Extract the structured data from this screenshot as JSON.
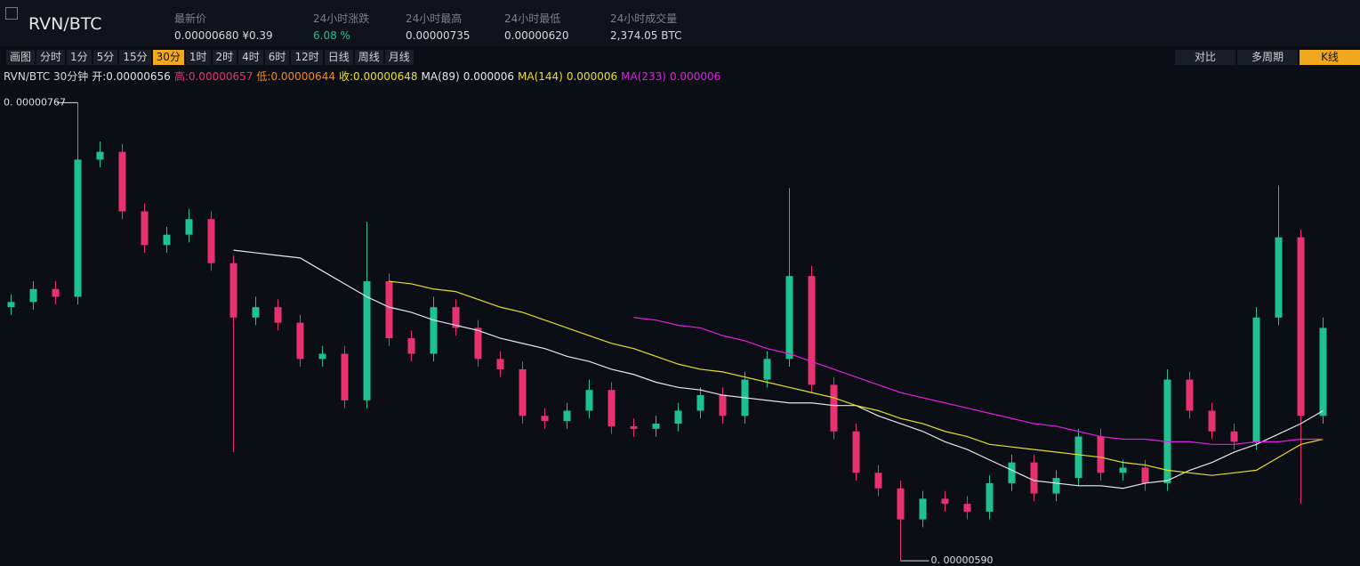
{
  "header": {
    "title": "RVN/BTC",
    "stats": [
      {
        "label": "最新价",
        "value": "0.00000680 ¥0.39"
      },
      {
        "label": "24小时涨跌",
        "value": "6.08 %",
        "color": "#1fc28f"
      },
      {
        "label": "24小时最高",
        "value": "0.00000735"
      },
      {
        "label": "24小时最低",
        "value": "0.00000620"
      },
      {
        "label": "24小时成交量",
        "value": "2,374.05 BTC"
      }
    ]
  },
  "toolbar": {
    "intervals": [
      {
        "label": "画图"
      },
      {
        "label": "分时"
      },
      {
        "label": "1分"
      },
      {
        "label": "5分"
      },
      {
        "label": "15分"
      },
      {
        "label": "30分",
        "active": true
      },
      {
        "label": "1时"
      },
      {
        "label": "2时"
      },
      {
        "label": "4时"
      },
      {
        "label": "6时"
      },
      {
        "label": "12时"
      },
      {
        "label": "日线"
      },
      {
        "label": "周线"
      },
      {
        "label": "月线"
      }
    ],
    "views": [
      {
        "label": "对比"
      },
      {
        "label": "多周期"
      },
      {
        "label": "K线",
        "active": true
      }
    ]
  },
  "legend": {
    "symbol": "RVN/BTC 30分钟",
    "items": [
      {
        "label": "开:",
        "value": "0.00000656",
        "color": "#e0e0e0"
      },
      {
        "label": "高:",
        "value": "0.00000657",
        "color": "#e8326f"
      },
      {
        "label": "低:",
        "value": "0.00000644",
        "color": "#f08a1c"
      },
      {
        "label": "收:",
        "value": "0.00000648",
        "color": "#e8e020"
      }
    ]
  },
  "chart_data": {
    "type": "candlestick",
    "ylim": [
      5.88e-06,
      7.74e-06
    ],
    "up_color": "#1fc28f",
    "down_color": "#e8326f",
    "open": [
      6.88e-06,
      6.9e-06,
      6.95e-06,
      6.92e-06,
      7.45e-06,
      7.48e-06,
      7.25e-06,
      7.12e-06,
      7.16e-06,
      7.22e-06,
      7.05e-06,
      6.84e-06,
      6.88e-06,
      6.82e-06,
      6.68e-06,
      6.7e-06,
      6.52e-06,
      6.98e-06,
      6.76e-06,
      6.7e-06,
      6.88e-06,
      6.8e-06,
      6.68e-06,
      6.64e-06,
      6.46e-06,
      6.44e-06,
      6.48e-06,
      6.56e-06,
      6.42e-06,
      6.41e-06,
      6.43e-06,
      6.48e-06,
      6.54e-06,
      6.46e-06,
      6.6e-06,
      6.68e-06,
      7e-06,
      6.58e-06,
      6.4e-06,
      6.24e-06,
      6.18e-06,
      6.06e-06,
      6.14e-06,
      6.12e-06,
      6.09e-06,
      6.2e-06,
      6.28e-06,
      6.16e-06,
      6.22e-06,
      6.38e-06,
      6.24e-06,
      6.26e-06,
      6.2e-06,
      6.6e-06,
      6.48e-06,
      6.4e-06,
      6.36e-06,
      6.84e-06,
      7.15e-06,
      6.46e-06
    ],
    "high": [
      6.93e-06,
      6.98e-06,
      6.98e-06,
      7.67e-06,
      7.52e-06,
      7.51e-06,
      7.28e-06,
      7.19e-06,
      7.26e-06,
      7.25e-06,
      7.08e-06,
      6.92e-06,
      6.91e-06,
      6.85e-06,
      6.73e-06,
      6.73e-06,
      7.21e-06,
      7.01e-06,
      6.79e-06,
      6.92e-06,
      6.91e-06,
      6.83e-06,
      6.71e-06,
      6.67e-06,
      6.49e-06,
      6.51e-06,
      6.6e-06,
      6.59e-06,
      6.45e-06,
      6.46e-06,
      6.51e-06,
      6.57e-06,
      6.57e-06,
      6.63e-06,
      6.71e-06,
      7.34e-06,
      7.04e-06,
      6.61e-06,
      6.43e-06,
      6.27e-06,
      6.21e-06,
      6.17e-06,
      6.17e-06,
      6.15e-06,
      6.23e-06,
      6.31e-06,
      6.31e-06,
      6.25e-06,
      6.41e-06,
      6.41e-06,
      6.29e-06,
      6.29e-06,
      6.64e-06,
      6.63e-06,
      6.51e-06,
      6.43e-06,
      6.88e-06,
      7.35e-06,
      7.18e-06,
      6.84e-06
    ],
    "low": [
      6.85e-06,
      6.87e-06,
      6.89e-06,
      6.89e-06,
      7.42e-06,
      7.22e-06,
      7.09e-06,
      7.09e-06,
      7.13e-06,
      7.02e-06,
      6.32e-06,
      6.81e-06,
      6.79e-06,
      6.65e-06,
      6.65e-06,
      6.49e-06,
      6.49e-06,
      6.73e-06,
      6.67e-06,
      6.67e-06,
      6.77e-06,
      6.65e-06,
      6.61e-06,
      6.43e-06,
      6.41e-06,
      6.41e-06,
      6.45e-06,
      6.39e-06,
      6.38e-06,
      6.38e-06,
      6.4e-06,
      6.45e-06,
      6.43e-06,
      6.43e-06,
      6.57e-06,
      6.65e-06,
      6.55e-06,
      6.37e-06,
      6.21e-06,
      6.15e-06,
      5.9e-06,
      6.03e-06,
      6.09e-06,
      6.06e-06,
      6.06e-06,
      6.17e-06,
      6.13e-06,
      6.13e-06,
      6.19e-06,
      6.21e-06,
      6.21e-06,
      6.17e-06,
      6.17e-06,
      6.45e-06,
      6.37e-06,
      6.33e-06,
      6.33e-06,
      6.81e-06,
      6.12e-06,
      6.43e-06
    ],
    "close": [
      6.9e-06,
      6.95e-06,
      6.92e-06,
      7.45e-06,
      7.48e-06,
      7.25e-06,
      7.12e-06,
      7.16e-06,
      7.22e-06,
      7.05e-06,
      6.84e-06,
      6.88e-06,
      6.82e-06,
      6.68e-06,
      6.7e-06,
      6.52e-06,
      6.98e-06,
      6.76e-06,
      6.7e-06,
      6.88e-06,
      6.8e-06,
      6.68e-06,
      6.64e-06,
      6.46e-06,
      6.44e-06,
      6.48e-06,
      6.56e-06,
      6.42e-06,
      6.41e-06,
      6.43e-06,
      6.48e-06,
      6.54e-06,
      6.46e-06,
      6.6e-06,
      6.68e-06,
      7e-06,
      6.58e-06,
      6.4e-06,
      6.24e-06,
      6.18e-06,
      6.06e-06,
      6.14e-06,
      6.12e-06,
      6.09e-06,
      6.2e-06,
      6.28e-06,
      6.16e-06,
      6.22e-06,
      6.38e-06,
      6.24e-06,
      6.26e-06,
      6.2e-06,
      6.6e-06,
      6.48e-06,
      6.4e-06,
      6.36e-06,
      6.84e-06,
      7.15e-06,
      6.46e-06,
      6.8e-06
    ],
    "series": [
      {
        "name": "MA(89)",
        "value_label": "0.000006",
        "color": "#e8e8e8",
        "values": [
          null,
          null,
          null,
          null,
          null,
          null,
          null,
          null,
          null,
          null,
          7.1e-06,
          7.09e-06,
          7.08e-06,
          7.07e-06,
          7.02e-06,
          6.97e-06,
          6.92e-06,
          6.88e-06,
          6.86e-06,
          6.83e-06,
          6.81e-06,
          6.79e-06,
          6.76e-06,
          6.74e-06,
          6.72e-06,
          6.69e-06,
          6.67e-06,
          6.64e-06,
          6.62e-06,
          6.59e-06,
          6.57e-06,
          6.56e-06,
          6.54e-06,
          6.53e-06,
          6.52e-06,
          6.51e-06,
          6.51e-06,
          6.5e-06,
          6.5e-06,
          6.46e-06,
          6.43e-06,
          6.4e-06,
          6.36e-06,
          6.33e-06,
          6.29e-06,
          6.25e-06,
          6.21e-06,
          6.2e-06,
          6.19e-06,
          6.19e-06,
          6.18e-06,
          6.2e-06,
          6.21e-06,
          6.25e-06,
          6.28e-06,
          6.32e-06,
          6.35e-06,
          6.39e-06,
          6.43e-06,
          6.48e-06
        ]
      },
      {
        "name": "MA(144)",
        "value_label": "0.000006",
        "color": "#e8e020",
        "values": [
          null,
          null,
          null,
          null,
          null,
          null,
          null,
          null,
          null,
          null,
          null,
          null,
          null,
          null,
          null,
          null,
          null,
          6.98e-06,
          6.97e-06,
          6.95e-06,
          6.94e-06,
          6.91e-06,
          6.88e-06,
          6.86e-06,
          6.83e-06,
          6.8e-06,
          6.77e-06,
          6.74e-06,
          6.72e-06,
          6.69e-06,
          6.66e-06,
          6.64e-06,
          6.63e-06,
          6.61e-06,
          6.59e-06,
          6.57e-06,
          6.55e-06,
          6.53e-06,
          6.5e-06,
          6.48e-06,
          6.45e-06,
          6.43e-06,
          6.4e-06,
          6.38e-06,
          6.35e-06,
          6.34e-06,
          6.33e-06,
          6.32e-06,
          6.31e-06,
          6.3e-06,
          6.28e-06,
          6.27e-06,
          6.25e-06,
          6.24e-06,
          6.23e-06,
          6.24e-06,
          6.25e-06,
          6.3e-06,
          6.35e-06,
          6.37e-06
        ]
      },
      {
        "name": "MA(233)",
        "value_label": "0.000006",
        "color": "#e020e0",
        "values": [
          null,
          null,
          null,
          null,
          null,
          null,
          null,
          null,
          null,
          null,
          null,
          null,
          null,
          null,
          null,
          null,
          null,
          null,
          null,
          null,
          null,
          null,
          null,
          null,
          null,
          null,
          null,
          null,
          6.84e-06,
          6.83e-06,
          6.81e-06,
          6.8e-06,
          6.77e-06,
          6.75e-06,
          6.72e-06,
          6.7e-06,
          6.67e-06,
          6.64e-06,
          6.61e-06,
          6.58e-06,
          6.55e-06,
          6.53e-06,
          6.51e-06,
          6.49e-06,
          6.47e-06,
          6.45e-06,
          6.43e-06,
          6.42e-06,
          6.4e-06,
          6.38e-06,
          6.37e-06,
          6.37e-06,
          6.36e-06,
          6.36e-06,
          6.35e-06,
          6.35e-06,
          6.36e-06,
          6.36e-06,
          6.37e-06,
          6.37e-06
        ]
      }
    ],
    "annotations": [
      {
        "value": 7.67e-06,
        "label": "0. 00000767"
      },
      {
        "value": 5.9e-06,
        "label": "0. 00000590"
      }
    ]
  }
}
